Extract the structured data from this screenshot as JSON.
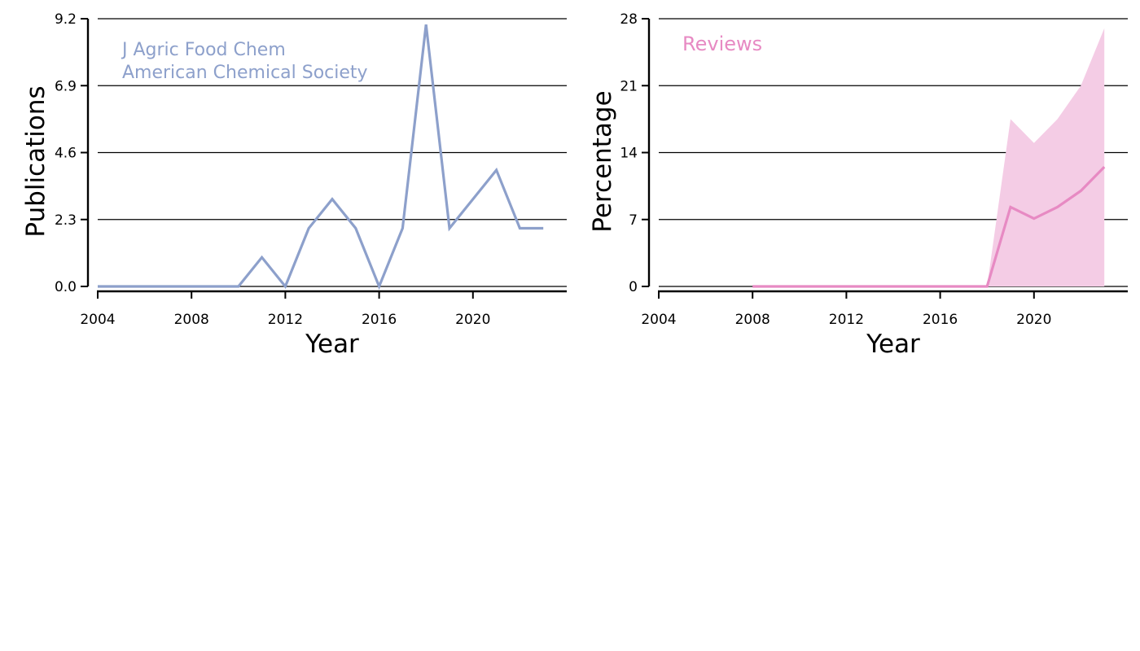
{
  "colors": {
    "left_line": "#8da0cb",
    "right_line": "#e78ac3",
    "right_band": "#f4cce5",
    "grid": "#000000",
    "axis": "#000000"
  },
  "chart_data": [
    {
      "type": "line",
      "xlabel": "Year",
      "ylabel": "Publications",
      "xlim": [
        2004,
        2024
      ],
      "ylim": [
        0,
        9.2
      ],
      "xticks": [
        "2004",
        "2008",
        "2012",
        "2016",
        "2020"
      ],
      "yticks": [
        "0.0",
        "2.3",
        "4.6",
        "6.9",
        "9.2"
      ],
      "grid": "horizontal",
      "annotations": [
        "J Agric Food Chem",
        "American Chemical Society"
      ],
      "x": [
        2004,
        2005,
        2006,
        2007,
        2008,
        2009,
        2010,
        2011,
        2012,
        2013,
        2014,
        2015,
        2016,
        2017,
        2018,
        2019,
        2020,
        2021,
        2022,
        2023
      ],
      "values": [
        0,
        0,
        0,
        0,
        0,
        0,
        0,
        1,
        0,
        2,
        3,
        2,
        0,
        2,
        9,
        2,
        3,
        4,
        2,
        2
      ]
    },
    {
      "type": "area",
      "xlabel": "Year",
      "ylabel": "Percentage",
      "xlim": [
        2004,
        2024
      ],
      "ylim": [
        0,
        28
      ],
      "xticks": [
        "2004",
        "2008",
        "2012",
        "2016",
        "2020"
      ],
      "yticks": [
        "0",
        "7",
        "14",
        "21",
        "28"
      ],
      "grid": "horizontal",
      "annotations": [
        "Reviews"
      ],
      "x": [
        2008,
        2009,
        2010,
        2011,
        2012,
        2013,
        2014,
        2015,
        2016,
        2017,
        2018,
        2019,
        2020,
        2021,
        2022,
        2023
      ],
      "values": [
        0,
        0,
        0,
        0,
        0,
        0,
        0,
        0,
        0,
        0,
        0,
        8.3,
        7.1,
        8.3,
        10.0,
        12.5
      ],
      "upper": [
        0,
        0,
        0,
        0,
        0,
        0,
        0,
        0,
        0,
        0,
        0,
        17.5,
        15.0,
        17.5,
        21.0,
        27.0
      ],
      "lower": [
        0,
        0,
        0,
        0,
        0,
        0,
        0,
        0,
        0,
        0,
        0,
        0,
        0,
        0,
        0,
        0
      ]
    }
  ]
}
